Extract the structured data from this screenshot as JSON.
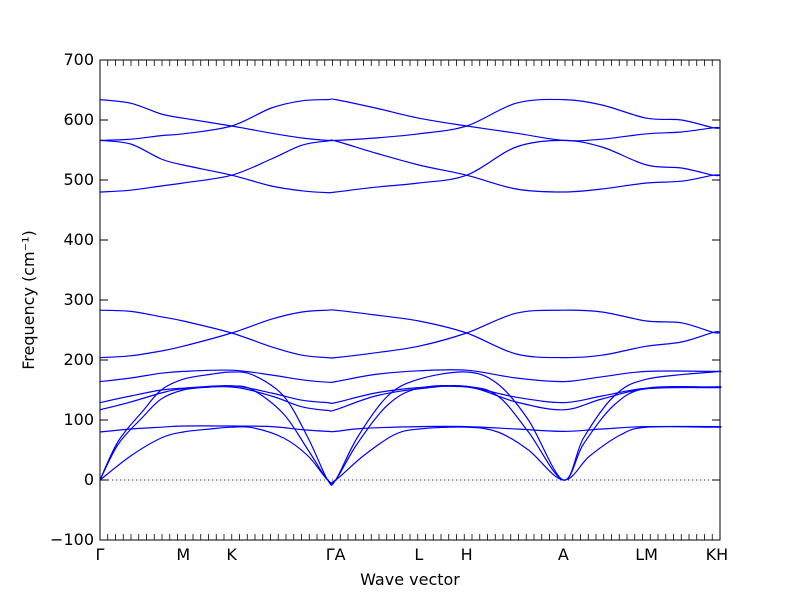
{
  "chart_data": {
    "type": "line",
    "title": "",
    "xlabel": "Wave vector",
    "ylabel": "Frequency (cm⁻¹)",
    "ylim": [
      -100,
      700
    ],
    "yticks": [
      -100,
      0,
      100,
      200,
      300,
      400,
      500,
      600,
      700
    ],
    "ytick_labels": [
      "−100",
      "0",
      "100",
      "200",
      "300",
      "400",
      "500",
      "600",
      "700"
    ],
    "xlim": [
      0,
      10.13
    ],
    "grid": false,
    "legend": "none",
    "line_color": "#0000ff",
    "zero_line_color": "#0000ff",
    "high_symmetry_points": [
      {
        "label": "Γ",
        "x": 0.0
      },
      {
        "label": "M",
        "x": 1.36
      },
      {
        "label": "K",
        "x": 2.15
      },
      {
        "label": "ΓA",
        "x": 3.85
      },
      {
        "label": "L",
        "x": 5.21
      },
      {
        "label": "H",
        "x": 5.99
      },
      {
        "label": "A",
        "x": 7.57
      },
      {
        "label": "LM",
        "x": 8.93
      },
      {
        "label": "KH",
        "x": 10.08
      }
    ],
    "segment_boundaries": [
      0.0,
      1.36,
      2.15,
      3.72,
      3.85,
      5.21,
      5.99,
      7.57,
      8.93,
      10.02,
      10.13
    ],
    "series": [
      {
        "points": [
          [
            0,
            0
          ],
          [
            0.5,
            40
          ],
          [
            1.0,
            70
          ],
          [
            1.36,
            80
          ],
          [
            1.8,
            85
          ],
          [
            2.15,
            88
          ],
          [
            2.5,
            87
          ],
          [
            3.0,
            70
          ],
          [
            3.4,
            40
          ],
          [
            3.72,
            0
          ],
          [
            3.85,
            0
          ],
          [
            4.3,
            40
          ],
          [
            4.8,
            75
          ],
          [
            5.21,
            85
          ],
          [
            5.99,
            88
          ],
          [
            6.5,
            80
          ],
          [
            7.0,
            50
          ],
          [
            7.57,
            0
          ],
          [
            8.0,
            40
          ],
          [
            8.5,
            75
          ],
          [
            8.93,
            88
          ],
          [
            10.02,
            88
          ],
          [
            10.13,
            88
          ]
        ]
      },
      {
        "points": [
          [
            0,
            0
          ],
          [
            0.3,
            60
          ],
          [
            0.7,
            105
          ],
          [
            1.0,
            135
          ],
          [
            1.36,
            150
          ],
          [
            1.8,
            155
          ],
          [
            2.15,
            157
          ],
          [
            2.5,
            150
          ],
          [
            3.0,
            110
          ],
          [
            3.4,
            50
          ],
          [
            3.72,
            0
          ],
          [
            3.85,
            0
          ],
          [
            4.2,
            60
          ],
          [
            4.7,
            125
          ],
          [
            5.21,
            153
          ],
          [
            5.99,
            156
          ],
          [
            6.5,
            140
          ],
          [
            7.0,
            80
          ],
          [
            7.57,
            0
          ],
          [
            7.9,
            60
          ],
          [
            8.4,
            125
          ],
          [
            8.93,
            153
          ],
          [
            10.02,
            155
          ],
          [
            10.13,
            155
          ]
        ]
      },
      {
        "points": [
          [
            0,
            0
          ],
          [
            0.3,
            65
          ],
          [
            0.7,
            115
          ],
          [
            1.0,
            150
          ],
          [
            1.36,
            168
          ],
          [
            1.8,
            176
          ],
          [
            2.15,
            180
          ],
          [
            2.5,
            175
          ],
          [
            3.0,
            140
          ],
          [
            3.4,
            70
          ],
          [
            3.72,
            0
          ],
          [
            3.85,
            0
          ],
          [
            4.2,
            70
          ],
          [
            4.7,
            140
          ],
          [
            5.21,
            168
          ],
          [
            5.99,
            180
          ],
          [
            6.5,
            160
          ],
          [
            7.0,
            100
          ],
          [
            7.57,
            0
          ],
          [
            7.9,
            70
          ],
          [
            8.4,
            140
          ],
          [
            8.93,
            168
          ],
          [
            10.02,
            180
          ],
          [
            10.13,
            180
          ]
        ]
      },
      {
        "points": [
          [
            0,
            80
          ],
          [
            0.5,
            85
          ],
          [
            1.0,
            88
          ],
          [
            1.36,
            90
          ],
          [
            2.15,
            90
          ],
          [
            2.8,
            89
          ],
          [
            3.3,
            84
          ],
          [
            3.72,
            81
          ],
          [
            3.85,
            81
          ],
          [
            4.3,
            86
          ],
          [
            5.21,
            89
          ],
          [
            5.99,
            89
          ],
          [
            6.8,
            85
          ],
          [
            7.57,
            81
          ],
          [
            8.2,
            85
          ],
          [
            8.93,
            89
          ],
          [
            10.02,
            89
          ],
          [
            10.13,
            89
          ]
        ]
      },
      {
        "points": [
          [
            0,
            117
          ],
          [
            0.5,
            130
          ],
          [
            1.0,
            145
          ],
          [
            1.36,
            152
          ],
          [
            2.15,
            155
          ],
          [
            2.8,
            140
          ],
          [
            3.3,
            122
          ],
          [
            3.72,
            116
          ],
          [
            3.85,
            117
          ],
          [
            4.5,
            140
          ],
          [
            5.21,
            152
          ],
          [
            5.99,
            156
          ],
          [
            6.8,
            130
          ],
          [
            7.57,
            117
          ],
          [
            8.2,
            135
          ],
          [
            8.93,
            152
          ],
          [
            10.02,
            154
          ],
          [
            10.13,
            154
          ]
        ]
      },
      {
        "points": [
          [
            0,
            129
          ],
          [
            0.5,
            140
          ],
          [
            1.0,
            150
          ],
          [
            1.36,
            153
          ],
          [
            2.15,
            157
          ],
          [
            2.8,
            145
          ],
          [
            3.3,
            133
          ],
          [
            3.72,
            129
          ],
          [
            3.85,
            129
          ],
          [
            4.5,
            145
          ],
          [
            5.21,
            154
          ],
          [
            5.99,
            155
          ],
          [
            6.8,
            138
          ],
          [
            7.57,
            129
          ],
          [
            8.2,
            140
          ],
          [
            8.93,
            153
          ],
          [
            10.02,
            155
          ],
          [
            10.13,
            155
          ]
        ]
      },
      {
        "points": [
          [
            0,
            164
          ],
          [
            0.5,
            170
          ],
          [
            1.0,
            178
          ],
          [
            1.36,
            181
          ],
          [
            2.15,
            183
          ],
          [
            2.8,
            175
          ],
          [
            3.3,
            167
          ],
          [
            3.72,
            163
          ],
          [
            3.85,
            164
          ],
          [
            4.5,
            176
          ],
          [
            5.21,
            182
          ],
          [
            5.99,
            183
          ],
          [
            6.8,
            170
          ],
          [
            7.57,
            164
          ],
          [
            8.2,
            172
          ],
          [
            8.93,
            181
          ],
          [
            10.02,
            181
          ],
          [
            10.13,
            181
          ]
        ]
      },
      {
        "points": [
          [
            0,
            204
          ],
          [
            0.5,
            207
          ],
          [
            1.0,
            215
          ],
          [
            1.36,
            223
          ],
          [
            2.15,
            245
          ],
          [
            2.8,
            268
          ],
          [
            3.3,
            280
          ],
          [
            3.72,
            283
          ],
          [
            3.85,
            283
          ],
          [
            4.5,
            275
          ],
          [
            5.21,
            265
          ],
          [
            5.99,
            245
          ],
          [
            6.8,
            210
          ],
          [
            7.57,
            204
          ],
          [
            8.2,
            208
          ],
          [
            8.93,
            223
          ],
          [
            9.5,
            230
          ],
          [
            10.02,
            246
          ],
          [
            10.13,
            246
          ]
        ]
      },
      {
        "points": [
          [
            0,
            283
          ],
          [
            0.5,
            281
          ],
          [
            1.0,
            272
          ],
          [
            1.36,
            265
          ],
          [
            2.15,
            245
          ],
          [
            2.8,
            222
          ],
          [
            3.3,
            208
          ],
          [
            3.72,
            204
          ],
          [
            3.85,
            204
          ],
          [
            4.5,
            212
          ],
          [
            5.21,
            223
          ],
          [
            5.99,
            245
          ],
          [
            6.8,
            278
          ],
          [
            7.57,
            283
          ],
          [
            8.2,
            280
          ],
          [
            8.93,
            265
          ],
          [
            9.5,
            262
          ],
          [
            10.02,
            246
          ],
          [
            10.13,
            246
          ]
        ]
      },
      {
        "points": [
          [
            0,
            480
          ],
          [
            0.5,
            483
          ],
          [
            1.0,
            490
          ],
          [
            1.36,
            495
          ],
          [
            2.15,
            508
          ],
          [
            2.8,
            535
          ],
          [
            3.3,
            558
          ],
          [
            3.72,
            565
          ],
          [
            3.85,
            565
          ],
          [
            4.5,
            545
          ],
          [
            5.21,
            525
          ],
          [
            5.99,
            508
          ],
          [
            6.8,
            485
          ],
          [
            7.57,
            480
          ],
          [
            8.2,
            485
          ],
          [
            8.93,
            495
          ],
          [
            9.5,
            498
          ],
          [
            10.02,
            508
          ],
          [
            10.13,
            508
          ]
        ]
      },
      {
        "points": [
          [
            0,
            566
          ],
          [
            0.5,
            560
          ],
          [
            1.0,
            535
          ],
          [
            1.36,
            525
          ],
          [
            2.15,
            508
          ],
          [
            2.8,
            490
          ],
          [
            3.3,
            482
          ],
          [
            3.72,
            479
          ],
          [
            3.85,
            480
          ],
          [
            4.5,
            488
          ],
          [
            5.21,
            495
          ],
          [
            5.99,
            508
          ],
          [
            6.8,
            555
          ],
          [
            7.57,
            566
          ],
          [
            8.2,
            555
          ],
          [
            8.93,
            525
          ],
          [
            9.5,
            520
          ],
          [
            10.02,
            508
          ],
          [
            10.13,
            508
          ]
        ]
      },
      {
        "points": [
          [
            0,
            566
          ],
          [
            0.5,
            568
          ],
          [
            1.0,
            574
          ],
          [
            1.36,
            577
          ],
          [
            2.15,
            590
          ],
          [
            2.8,
            620
          ],
          [
            3.3,
            632
          ],
          [
            3.72,
            634
          ],
          [
            3.85,
            634
          ],
          [
            4.5,
            620
          ],
          [
            5.21,
            603
          ],
          [
            5.99,
            590
          ],
          [
            6.8,
            578
          ],
          [
            7.57,
            566
          ],
          [
            8.2,
            568
          ],
          [
            8.93,
            577
          ],
          [
            9.5,
            580
          ],
          [
            10.02,
            587
          ],
          [
            10.13,
            587
          ]
        ]
      },
      {
        "points": [
          [
            0,
            634
          ],
          [
            0.5,
            628
          ],
          [
            1.0,
            610
          ],
          [
            1.36,
            603
          ],
          [
            2.15,
            590
          ],
          [
            2.8,
            578
          ],
          [
            3.3,
            570
          ],
          [
            3.72,
            566
          ],
          [
            3.85,
            566
          ],
          [
            4.5,
            570
          ],
          [
            5.21,
            577
          ],
          [
            5.99,
            590
          ],
          [
            6.8,
            628
          ],
          [
            7.57,
            634
          ],
          [
            8.2,
            625
          ],
          [
            8.93,
            603
          ],
          [
            9.5,
            600
          ],
          [
            10.02,
            587
          ],
          [
            10.13,
            587
          ]
        ]
      }
    ]
  }
}
